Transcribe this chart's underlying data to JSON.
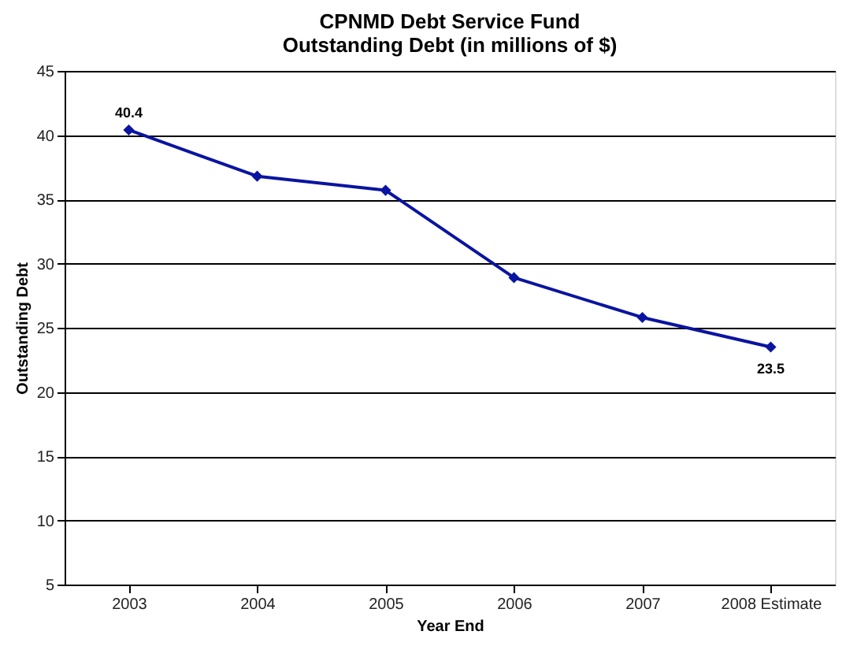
{
  "chart_data": {
    "type": "line",
    "title": "CPNMD Debt Service Fund\nOutstanding Debt  (in millions of $)",
    "xlabel": "Year End",
    "ylabel": "Outstanding Debt",
    "categories": [
      "2003",
      "2004",
      "2005",
      "2006",
      "2007",
      "2008 Estimate"
    ],
    "series": [
      {
        "color": "#0a14a0",
        "values": [
          40.4,
          36.8,
          35.7,
          28.9,
          25.8,
          23.5
        ],
        "value_labels": [
          "40.4",
          null,
          null,
          null,
          null,
          "23.5"
        ]
      }
    ],
    "ylim": [
      5,
      45
    ],
    "yticks": [
      5,
      10,
      15,
      20,
      25,
      30,
      35,
      40,
      45
    ],
    "grid": "y",
    "marker": "diamond",
    "line_style": "solid"
  }
}
